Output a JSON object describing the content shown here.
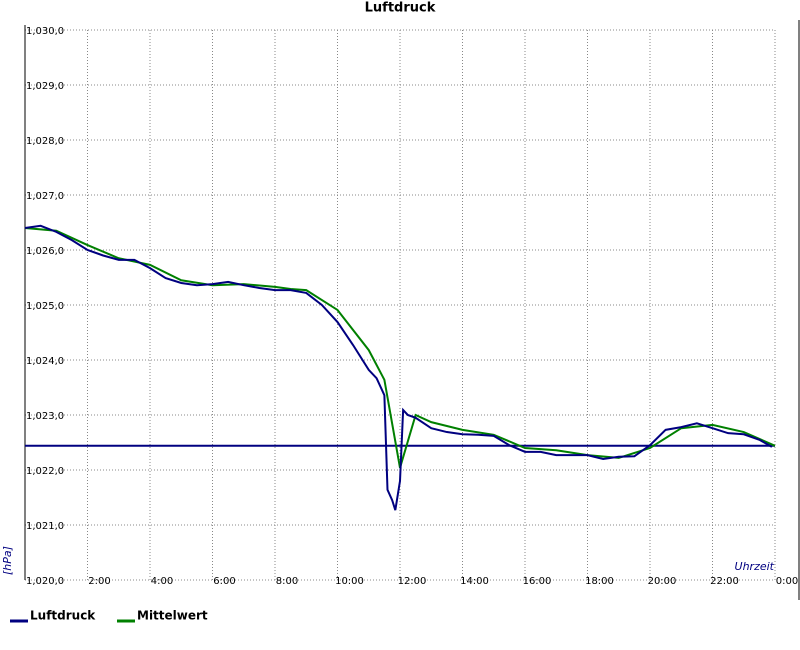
{
  "chart_data": {
    "type": "line",
    "title": "Luftdruck",
    "x_label": "Uhrzeit",
    "y_label": "[hPa]",
    "xlim": [
      0,
      24
    ],
    "ylim": [
      1020,
      1030
    ],
    "xticks": [
      {
        "value": 2,
        "label": "2:00"
      },
      {
        "value": 4,
        "label": "4:00"
      },
      {
        "value": 6,
        "label": "6:00"
      },
      {
        "value": 8,
        "label": "8:00"
      },
      {
        "value": 10,
        "label": "10:00"
      },
      {
        "value": 12,
        "label": "12:00"
      },
      {
        "value": 14,
        "label": "14:00"
      },
      {
        "value": 16,
        "label": "16:00"
      },
      {
        "value": 18,
        "label": "18:00"
      },
      {
        "value": 20,
        "label": "20:00"
      },
      {
        "value": 22,
        "label": "22:00"
      },
      {
        "value": 24,
        "label": "0:00"
      }
    ],
    "yticks": [
      {
        "value": 1020,
        "label": "1,020,0"
      },
      {
        "value": 1021,
        "label": "1,021,0"
      },
      {
        "value": 1022,
        "label": "1,022,0"
      },
      {
        "value": 1023,
        "label": "1,023,0"
      },
      {
        "value": 1024,
        "label": "1,024,0"
      },
      {
        "value": 1025,
        "label": "1,025,0"
      },
      {
        "value": 1026,
        "label": "1,026,0"
      },
      {
        "value": 1027,
        "label": "1,027,0"
      },
      {
        "value": 1028,
        "label": "1,028,0"
      },
      {
        "value": 1029,
        "label": "1,029,0"
      },
      {
        "value": 1030,
        "label": "1,030,0"
      }
    ],
    "grid": true,
    "reference_line": 1022.44,
    "reference_color": "#000080",
    "series": [
      {
        "name": "Luftdruck",
        "color": "#000080",
        "x": [
          0,
          0.5,
          1,
          1.5,
          2,
          2.5,
          3,
          3.5,
          4,
          4.5,
          5,
          5.5,
          6,
          6.5,
          7,
          7.5,
          8,
          8.5,
          9,
          9.5,
          10,
          10.5,
          11,
          11.25,
          11.5,
          11.6,
          11.75,
          11.85,
          12.0,
          12.1,
          12.25,
          12.5,
          13,
          13.5,
          14,
          14.5,
          15,
          15.5,
          16,
          16.5,
          17,
          17.5,
          18,
          18.5,
          19,
          19.5,
          20,
          20.5,
          21,
          21.5,
          22,
          22.5,
          23,
          23.5,
          23.9
        ],
        "values": [
          1026.4,
          1026.44,
          1026.33,
          1026.18,
          1026.0,
          1025.9,
          1025.82,
          1025.82,
          1025.67,
          1025.49,
          1025.4,
          1025.36,
          1025.38,
          1025.42,
          1025.36,
          1025.31,
          1025.27,
          1025.27,
          1025.22,
          1025.0,
          1024.69,
          1024.27,
          1023.82,
          1023.67,
          1023.36,
          1021.64,
          1021.45,
          1021.27,
          1021.8,
          1023.09,
          1023.0,
          1022.95,
          1022.76,
          1022.69,
          1022.65,
          1022.64,
          1022.62,
          1022.45,
          1022.33,
          1022.33,
          1022.27,
          1022.27,
          1022.27,
          1022.2,
          1022.24,
          1022.25,
          1022.45,
          1022.73,
          1022.78,
          1022.85,
          1022.76,
          1022.67,
          1022.65,
          1022.55,
          1022.42
        ]
      },
      {
        "name": "Mittelwert",
        "color": "#008000",
        "x": [
          0,
          1,
          2,
          3,
          4,
          5,
          6,
          7,
          8,
          8.5,
          9,
          10,
          11,
          11.5,
          12.0,
          12.5,
          13,
          14,
          15,
          16,
          17,
          18,
          19,
          20,
          21,
          22,
          23,
          24
        ],
        "values": [
          1026.4,
          1026.35,
          1026.09,
          1025.85,
          1025.73,
          1025.45,
          1025.36,
          1025.38,
          1025.33,
          1025.29,
          1025.27,
          1024.91,
          1024.18,
          1023.64,
          1022.04,
          1023.0,
          1022.87,
          1022.73,
          1022.64,
          1022.4,
          1022.36,
          1022.27,
          1022.22,
          1022.4,
          1022.76,
          1022.82,
          1022.69,
          1022.44
        ]
      }
    ]
  }
}
